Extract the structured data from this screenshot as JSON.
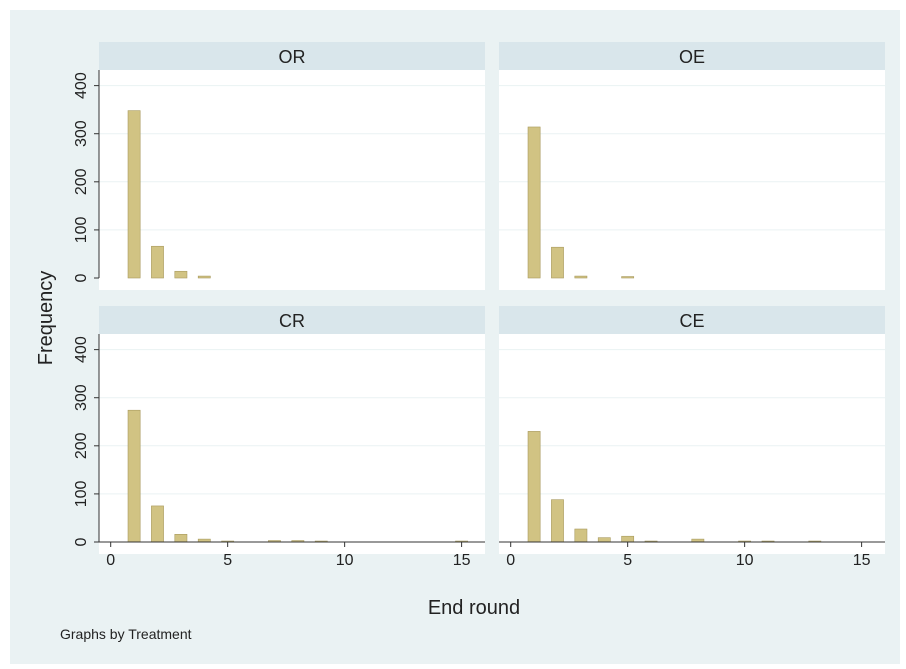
{
  "colors": {
    "outer_background": "#eaf2f3",
    "plot_background": "#ffffff",
    "strip_background": "#d9e6eb",
    "bar_fill": "#d1c383",
    "bar_stroke": "#a89a5e",
    "grid": "#eaf2f3",
    "axis": "#333333"
  },
  "note": "Graphs by Treatment",
  "chart_data": {
    "type": "bar",
    "subtype": "histogram",
    "layout": "2x2 panels",
    "xlabel": "End round",
    "ylabel": "Frequency",
    "xlim": [
      -0.5,
      16
    ],
    "ylim": [
      0,
      420
    ],
    "xticks": [
      0,
      5,
      10,
      15
    ],
    "yticks": [
      0,
      100,
      200,
      300,
      400
    ],
    "bin_width": 1,
    "grid": true,
    "panels": [
      {
        "name": "OR",
        "x": [
          1,
          2,
          3,
          4
        ],
        "values": [
          348,
          66,
          14,
          4
        ]
      },
      {
        "name": "OE",
        "x": [
          1,
          2,
          3,
          5
        ],
        "values": [
          314,
          64,
          4,
          3
        ]
      },
      {
        "name": "CR",
        "x": [
          1,
          2,
          3,
          4,
          5,
          7,
          8,
          9,
          15
        ],
        "values": [
          274,
          75,
          16,
          6,
          2,
          3,
          3,
          2,
          2
        ]
      },
      {
        "name": "CE",
        "x": [
          1,
          2,
          3,
          4,
          5,
          6,
          8,
          10,
          11,
          13
        ],
        "values": [
          230,
          88,
          27,
          9,
          12,
          2,
          6,
          2,
          2,
          2
        ]
      }
    ]
  }
}
